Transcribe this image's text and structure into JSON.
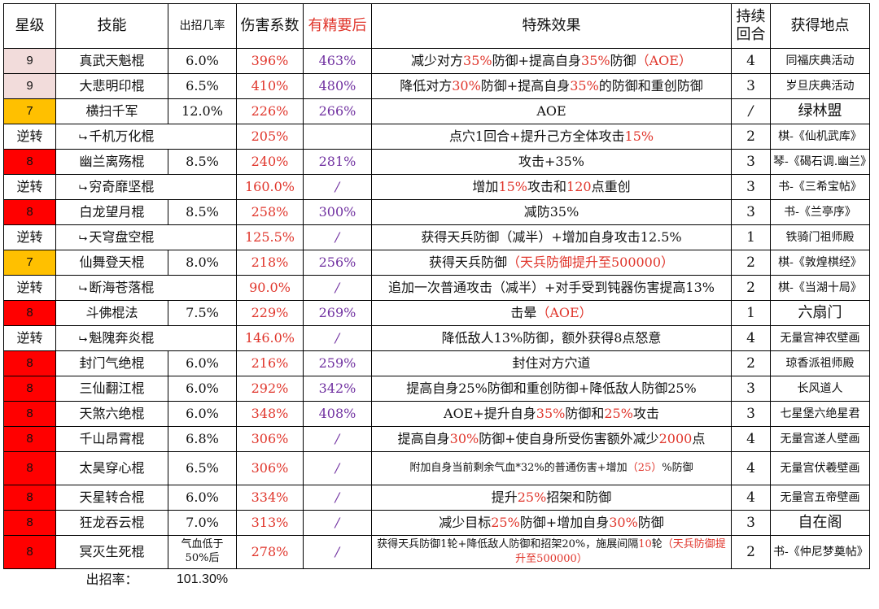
{
  "headers": {
    "star": "星级",
    "skill": "技能",
    "rate": "出招几率",
    "coef": "伤害系数",
    "refine": "有精要后",
    "effect": "特殊效果",
    "duration": "持续回合",
    "source": "获得地点"
  },
  "rows": [
    {
      "star": "9",
      "name": "真武天魁棍",
      "rate": "6.0%",
      "coef": "396%",
      "refine": "463%",
      "effect_parts": [
        [
          "减少对方",
          ""
        ],
        [
          "35%",
          "red"
        ],
        [
          "防御+提高自身",
          ""
        ],
        [
          "35%",
          "red"
        ],
        [
          "防御",
          ""
        ],
        [
          "（AOE）",
          "red"
        ]
      ],
      "duration": "4",
      "source": "同福庆典活动"
    },
    {
      "star": "9",
      "name": "大悲明印棍",
      "rate": "6.5%",
      "coef": "410%",
      "refine": "480%",
      "effect_parts": [
        [
          "降低对方",
          ""
        ],
        [
          "30%",
          "red"
        ],
        [
          "防御+提高自身",
          ""
        ],
        [
          "35%",
          "red"
        ],
        [
          "的防御和重创防御",
          ""
        ]
      ],
      "duration": "3",
      "source": "岁旦庆典活动"
    },
    {
      "star": "7",
      "name": "横扫千军",
      "rate": "12.0%",
      "coef": "226%",
      "refine": "266%",
      "effect_parts": [
        [
          "AOE",
          ""
        ]
      ],
      "duration": "/",
      "source": "绿林盟"
    },
    {
      "star": "逆转",
      "name": "千机万化棍",
      "rate": "",
      "coef": "205%",
      "refine": "",
      "effect_parts": [
        [
          "点穴1回合+提升己方全体攻击",
          ""
        ],
        [
          "15%",
          "red"
        ]
      ],
      "duration": "2",
      "source": "棋-《仙机武库》"
    },
    {
      "star": "8",
      "name": "幽兰离殇棍",
      "rate": "8.5%",
      "coef": "240%",
      "refine": "281%",
      "effect_parts": [
        [
          "攻击+35%",
          ""
        ]
      ],
      "duration": "3",
      "source": "琴-《碣石调.幽兰》"
    },
    {
      "star": "逆转",
      "name": "穷奇靡坚棍",
      "rate": "",
      "coef": "160.0%",
      "refine": "/",
      "effect_parts": [
        [
          "增加",
          ""
        ],
        [
          "15%",
          "red"
        ],
        [
          "攻击和",
          ""
        ],
        [
          "120",
          "red"
        ],
        [
          "点重创",
          ""
        ]
      ],
      "duration": "3",
      "source": "书-《三希宝帖》"
    },
    {
      "star": "8",
      "name": "白龙望月棍",
      "rate": "8.5%",
      "coef": "258%",
      "refine": "300%",
      "effect_parts": [
        [
          "减防35%",
          ""
        ]
      ],
      "duration": "3",
      "source": "书-《兰亭序》"
    },
    {
      "star": "逆转",
      "name": "天穹盘空棍",
      "rate": "",
      "coef": "125.5%",
      "refine": "/",
      "effect_parts": [
        [
          "获得天兵防御（减半）+增加自身攻击12.5%",
          ""
        ]
      ],
      "duration": "1",
      "source": "铁骑门祖师殿"
    },
    {
      "star": "7",
      "name": "仙舞登天棍",
      "rate": "8.0%",
      "coef": "218%",
      "refine": "256%",
      "effect_parts": [
        [
          "获得天兵防御",
          ""
        ],
        [
          "（天兵防御提升至500000）",
          "red"
        ]
      ],
      "duration": "2",
      "source": "棋-《敦煌棋经》"
    },
    {
      "star": "逆转",
      "name": "断海苍落棍",
      "rate": "",
      "coef": "90.0%",
      "refine": "/",
      "effect_parts": [
        [
          "追加一次普通攻击（减半）+对手受到钝器伤害提高13%",
          ""
        ]
      ],
      "duration": "2",
      "source": "棋-《当湖十局》"
    },
    {
      "star": "8",
      "name": "斗佛棍法",
      "rate": "7.5%",
      "coef": "229%",
      "refine": "269%",
      "effect_parts": [
        [
          "击晕",
          ""
        ],
        [
          "（AOE）",
          "red"
        ]
      ],
      "duration": "1",
      "source": "六扇门"
    },
    {
      "star": "逆转",
      "name": "魁隗奔炎棍",
      "rate": "",
      "coef": "146.0%",
      "refine": "/",
      "effect_parts": [
        [
          "降低敌人13%防御，额外获得8点怒意",
          ""
        ]
      ],
      "duration": "4",
      "source": "无量宫神农壁画"
    },
    {
      "star": "8",
      "name": "封门气绝棍",
      "rate": "6.0%",
      "coef": "216%",
      "refine": "259%",
      "effect_parts": [
        [
          "封住对方穴道",
          ""
        ]
      ],
      "duration": "2",
      "source": "琼香派祖师殿"
    },
    {
      "star": "8",
      "name": "三仙翻江棍",
      "rate": "6.0%",
      "coef": "292%",
      "refine": "342%",
      "effect_parts": [
        [
          "提高自身25%防御和重创防御+降低敌人防御25%",
          ""
        ]
      ],
      "duration": "3",
      "source": "长风道人"
    },
    {
      "star": "8",
      "name": "天煞六绝棍",
      "rate": "6.0%",
      "coef": "348%",
      "refine": "408%",
      "effect_parts": [
        [
          "AOE+提升自身",
          ""
        ],
        [
          "35%",
          "red"
        ],
        [
          "防御和",
          ""
        ],
        [
          "25%",
          "red"
        ],
        [
          "攻击",
          ""
        ]
      ],
      "duration": "3",
      "source": "七星堡六绝星君"
    },
    {
      "star": "8",
      "name": "千山昂霄棍",
      "rate": "6.8%",
      "coef": "306%",
      "refine": "/",
      "effect_parts": [
        [
          "提高自身",
          ""
        ],
        [
          "30%",
          "red"
        ],
        [
          "防御+使自身所受伤害额外减少",
          ""
        ],
        [
          "2000",
          "red"
        ],
        [
          "点",
          ""
        ]
      ],
      "duration": "4",
      "source": "无量宫遂人壁画"
    },
    {
      "star": "8",
      "name": "太昊穿心棍",
      "rate": "6.5%",
      "coef": "306%",
      "refine": "/",
      "effect_parts": [
        [
          "附加自身当前剩余气血*32%的普通伤害+增加",
          ""
        ],
        [
          "（25）",
          "red"
        ],
        [
          "%防御",
          ""
        ]
      ],
      "duration": "4",
      "source": "无量宫伏羲壁画"
    },
    {
      "star": "8",
      "name": "天星转合棍",
      "rate": "6.0%",
      "coef": "334%",
      "refine": "/",
      "effect_parts": [
        [
          "提升",
          ""
        ],
        [
          "25%",
          "red"
        ],
        [
          "招架和防御",
          ""
        ]
      ],
      "duration": "4",
      "source": "无量宫五帝壁画"
    },
    {
      "star": "8",
      "name": "狂龙吞云棍",
      "rate": "7.0%",
      "coef": "313%",
      "refine": "/",
      "effect_parts": [
        [
          "减少目标",
          ""
        ],
        [
          "25%",
          "red"
        ],
        [
          "防御+增加自身",
          ""
        ],
        [
          "30%",
          "red"
        ],
        [
          "防御",
          ""
        ]
      ],
      "duration": "3",
      "source": "自在阁"
    },
    {
      "star": "8",
      "name": "冥灭生死棍",
      "rate": "气血低于50%后",
      "coef": "278%",
      "refine": "/",
      "effect_parts": [
        [
          "获得天兵防御1轮+降低敌人防御和招架20%，施展间隔",
          ""
        ],
        [
          "10",
          "red"
        ],
        [
          "轮",
          ""
        ],
        [
          "（天兵防御提升至500000）",
          "red"
        ]
      ],
      "duration": "2",
      "source": "书-《仲尼梦奠帖》"
    }
  ],
  "footer": {
    "label": "出招率：",
    "value": "101.30%"
  },
  "colors": {
    "pink": "#f2dcdb",
    "orange": "#ffc000",
    "red": "#ff0000",
    "accent_red": "#e0362c",
    "purple": "#7030a0"
  }
}
